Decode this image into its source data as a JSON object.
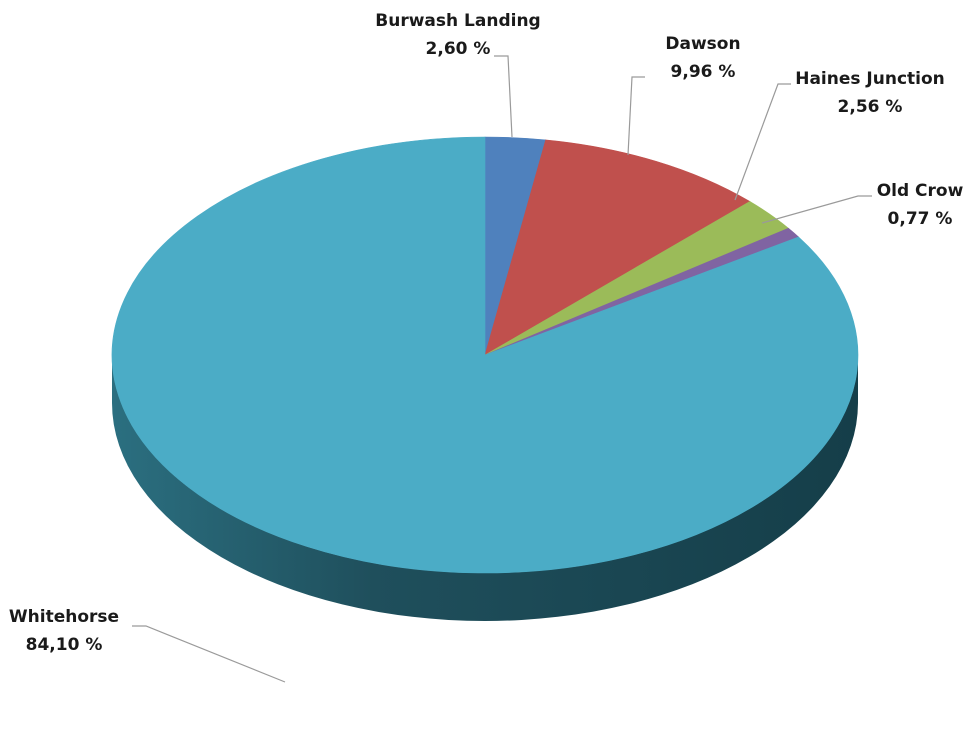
{
  "chart_data": {
    "type": "pie",
    "style": "3d",
    "title": "",
    "slices": [
      {
        "label": "Burwash Landing",
        "value": 2.6,
        "value_text": "2,60 %",
        "color": "#4f81bd"
      },
      {
        "label": "Dawson",
        "value": 9.96,
        "value_text": "9,96 %",
        "color": "#c0504d"
      },
      {
        "label": "Haines Junction",
        "value": 2.56,
        "value_text": "2,56 %",
        "color": "#9bbb59"
      },
      {
        "label": "Old Crow",
        "value": 0.77,
        "value_text": "0,77 %",
        "color": "#8064a2"
      },
      {
        "label": "Whitehorse",
        "value": 84.1,
        "value_text": "84,10 %",
        "color": "#4bacc6"
      }
    ],
    "start_angle_deg": 0,
    "direction": "clockwise"
  }
}
